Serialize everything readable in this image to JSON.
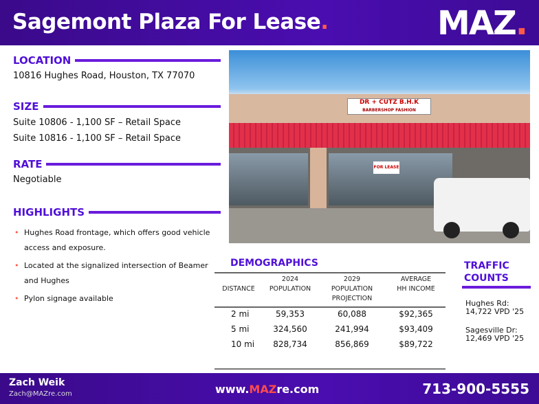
{
  "header": {
    "title": "Sagemont Plaza For Lease",
    "title_dot": ".",
    "logo": "MAZ",
    "logo_dot": "."
  },
  "location": {
    "heading": "LOCATION",
    "address": "10816 Hughes Road, Houston, TX 77070"
  },
  "size": {
    "heading": "SIZE",
    "suites": [
      "Suite 10806 - 1,100 SF  – Retail Space",
      "Suite 10816 - 1,100 SF  – Retail Space"
    ]
  },
  "rate": {
    "heading": "RATE",
    "value": "Negotiable"
  },
  "highlights": {
    "heading": "HIGHLIGHTS",
    "items": [
      "Hughes Road frontage, which offers good vehicle access and exposure.",
      "Located at the signalized intersection of Beamer and Hughes",
      "Pylon signage available"
    ]
  },
  "photo": {
    "sign_line1": "DR + CUTZ B.H.K",
    "sign_line2": "BARBERSHOP   FASHION",
    "window_sign": "FOR LEASE"
  },
  "demographics": {
    "heading": "DEMOGRAPHICS",
    "columns": [
      "DISTANCE",
      "2024 POPULATION",
      "2029 POPULATION PROJECTION",
      "AVERAGE HH INCOME"
    ],
    "rows": [
      [
        "2 mi",
        "59,353",
        "60,088",
        "$92,365"
      ],
      [
        "5 mi",
        "324,560",
        "241,994",
        "$93,409"
      ],
      [
        "10 mi",
        "828,734",
        "856,869",
        "$89,722"
      ]
    ]
  },
  "traffic": {
    "heading_line1": "TRAFFIC",
    "heading_line2": "COUNTS",
    "items": [
      {
        "road": "Hughes Rd:",
        "count": "14,722 VPD '25"
      },
      {
        "road": "Sagesville Dr:",
        "count": "12,469 VPD '25"
      }
    ]
  },
  "footer": {
    "name": "Zach Weik",
    "email": "Zach@MAZre.com",
    "web_prefix": "www.",
    "web_brand": "MAZ",
    "web_suffix": "re.com",
    "phone": "713-900-5555"
  },
  "colors": {
    "brand_purple": "#4a0db0",
    "accent_red": "#ff5a4a",
    "heading_purple": "#5010d8"
  }
}
